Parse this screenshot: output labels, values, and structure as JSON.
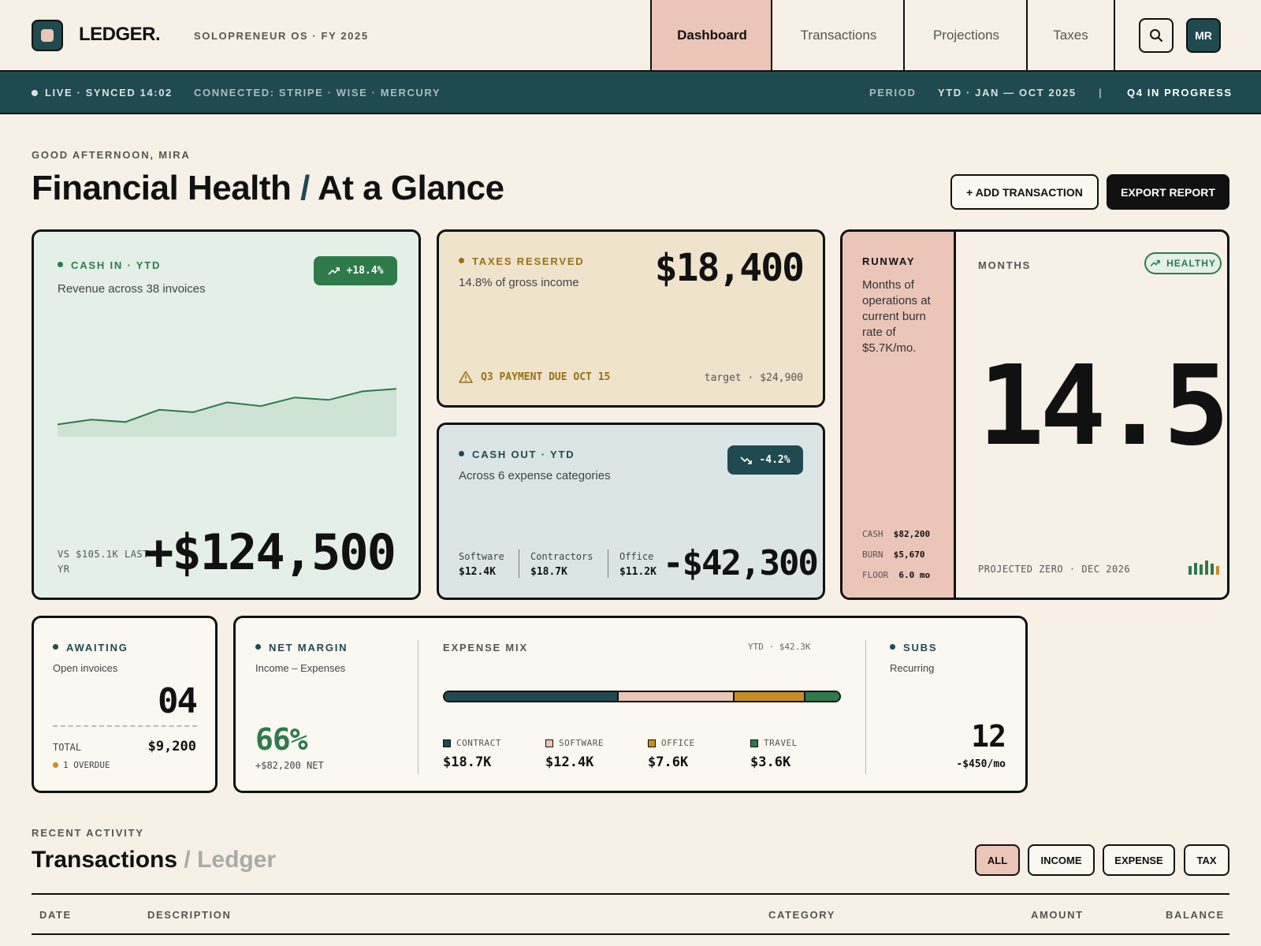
{
  "header": {
    "brand": "LEDGER.",
    "subtitle": "SOLOPRENEUR OS · FY 2025",
    "tabs": [
      {
        "label": "Dashboard",
        "active": true
      },
      {
        "label": "Transactions",
        "active": false
      },
      {
        "label": "Projections",
        "active": false
      },
      {
        "label": "Taxes",
        "active": false
      }
    ],
    "search_icon": "search-icon",
    "avatar_initials": "MR"
  },
  "status_bar": {
    "live": "LIVE · SYNCED 14:02",
    "connected": "CONNECTED: STRIPE · WISE · MERCURY",
    "period_label": "PERIOD",
    "period_value": "YTD · JAN — OCT 2025",
    "separator": "|",
    "quarter": "Q4 IN PROGRESS"
  },
  "page": {
    "greeting": "GOOD AFTERNOON, MIRA",
    "title_main": "Financial Health",
    "title_slash": "/",
    "title_sub": "At a Glance",
    "add_transaction": "+ ADD TRANSACTION",
    "export_report": "EXPORT REPORT"
  },
  "cash_in": {
    "label": "CASH IN · YTD",
    "subtitle": "Revenue across 38 invoices",
    "badge": "+18.4%",
    "comparison": "VS $105.1K LAST YR",
    "amount": "+$124,500",
    "trend": [
      40,
      44,
      42,
      52,
      50,
      58,
      55,
      62,
      60,
      67,
      69
    ],
    "color": "#2e7a4a"
  },
  "taxes": {
    "label": "TAXES RESERVED",
    "subtitle": "14.8% of gross income",
    "amount": "$18,400",
    "due": "Q3 PAYMENT DUE OCT 15",
    "target": "target · $24,900",
    "color": "#9a6f12"
  },
  "cash_out": {
    "label": "CASH OUT · YTD",
    "subtitle": "Across 6 expense categories",
    "badge": "-4.2%",
    "amount": "-$42,300",
    "categories": [
      {
        "name": "Software",
        "value": "$12.4K"
      },
      {
        "name": "Contractors",
        "value": "$18.7K"
      },
      {
        "name": "Office",
        "value": "$11.2K"
      }
    ]
  },
  "runway": {
    "label": "RUNWAY",
    "description": "Months of operations at current burn rate of $5.7K/mo.",
    "metrics": [
      {
        "label": "CASH",
        "value": "$82,200"
      },
      {
        "label": "BURN",
        "value": "$5,670"
      },
      {
        "label": "FLOOR",
        "value": "6.0 mo"
      }
    ],
    "months_label": "MONTHS",
    "status": "HEALTHY",
    "months": "14.5",
    "projected": "PROJECTED ZERO · DEC 2026"
  },
  "awaiting": {
    "label": "AWAITING",
    "subtitle": "Open invoices",
    "count": "04",
    "total_label": "TOTAL",
    "total": "$9,200",
    "overdue": "1 OVERDUE"
  },
  "net_margin": {
    "label": "NET MARGIN",
    "subtitle": "Income – Expenses",
    "percent": "66%",
    "net": "+$82,200 NET"
  },
  "expense_mix": {
    "label": "EXPENSE MIX",
    "total": "YTD · $42.3K",
    "segments": [
      {
        "name": "CONTRACT",
        "value": "$18.7K",
        "amount": 18.7,
        "color": "#1f4a50"
      },
      {
        "name": "SOFTWARE",
        "value": "$12.4K",
        "amount": 12.4,
        "color": "#ebc5b8"
      },
      {
        "name": "OFFICE",
        "value": "$7.6K",
        "amount": 7.6,
        "color": "#c48f24"
      },
      {
        "name": "TRAVEL",
        "value": "$3.6K",
        "amount": 3.6,
        "color": "#2e7a4a"
      }
    ]
  },
  "subs": {
    "label": "SUBS",
    "subtitle": "Recurring",
    "count": "12",
    "change": "-$450/mo"
  },
  "activity": {
    "label": "RECENT ACTIVITY",
    "title": "Transactions",
    "title_sub": "/ Ledger",
    "filters": [
      {
        "label": "ALL",
        "active": true
      },
      {
        "label": "INCOME",
        "active": false
      },
      {
        "label": "EXPENSE",
        "active": false
      },
      {
        "label": "TAX",
        "active": false
      }
    ],
    "columns": [
      "DATE",
      "DESCRIPTION",
      "CATEGORY",
      "AMOUNT",
      "BALANCE"
    ]
  }
}
